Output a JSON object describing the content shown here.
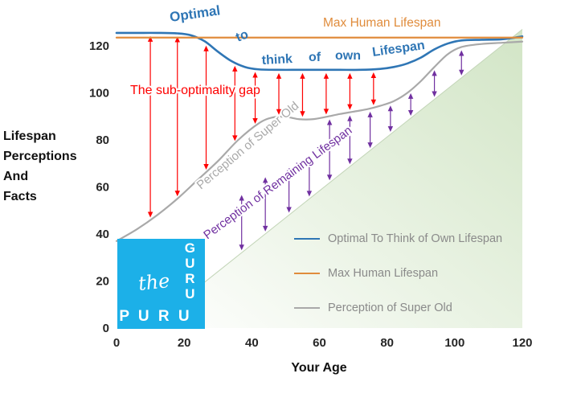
{
  "colors": {
    "blue": "#2f76b5",
    "orange": "#e08c3c",
    "gray": "#a9a9a9",
    "red": "#fe0000",
    "purple": "#7030a0",
    "green_area": "#d2e5c6",
    "logo_cyan": "#1cb0e8",
    "legend_text": "#8a8a8a",
    "axis_text": "#262626"
  },
  "axis": {
    "x_title": "Your Age",
    "y_title_lines": [
      "Lifespan",
      "Perceptions",
      "And",
      "Facts"
    ]
  },
  "annotations": {
    "optimal_words": [
      "Optimal",
      "to",
      "think",
      "of",
      "own",
      "Lifespan"
    ],
    "max_label": "Max Human Lifespan",
    "gap_label": "The sub-optimality gap",
    "super_old_label": "Perception of Super Old",
    "remaining_label": "Perception of Remaining Lifespan"
  },
  "legend": {
    "items": [
      {
        "label": "Optimal To Think of Own Lifespan",
        "color_key": "blue"
      },
      {
        "label": "Max Human Lifespan",
        "color_key": "orange"
      },
      {
        "label": "Perception of Super Old",
        "color_key": "gray"
      }
    ]
  },
  "logo": {
    "side_letters": [
      "G",
      "U",
      "R",
      "U"
    ],
    "script_word": "the",
    "bottom_word": "P U R U"
  },
  "chart_data": {
    "type": "line",
    "title": "",
    "xlabel": "Your Age",
    "ylabel": "Lifespan Perceptions And Facts",
    "xlim": [
      0,
      120
    ],
    "ylim": [
      0,
      130
    ],
    "x_ticks": [
      0,
      20,
      40,
      60,
      80,
      100,
      120
    ],
    "y_ticks": [
      0,
      20,
      40,
      60,
      80,
      100,
      120
    ],
    "grid": false,
    "legend_position": "inside-bottom-right",
    "series": [
      {
        "name": "Optimal To Think of Own Lifespan",
        "color_key": "blue",
        "x": [
          0,
          6,
          12,
          18,
          22,
          26,
          30,
          34,
          38,
          42,
          48,
          54,
          60,
          66,
          72,
          78,
          82,
          86,
          90,
          94,
          98,
          102,
          108,
          114,
          120
        ],
        "y": [
          125.5,
          125.5,
          125.5,
          125.3,
          124.5,
          122,
          117.5,
          113.5,
          111,
          110,
          109.8,
          109.8,
          109.8,
          109.8,
          109.8,
          110.2,
          111,
          112.5,
          115,
          118.5,
          121,
          122.3,
          122.6,
          122.8,
          124
        ]
      },
      {
        "name": "Max Human Lifespan",
        "color_key": "orange",
        "x": [
          0,
          120
        ],
        "y": [
          123.5,
          123.5
        ]
      },
      {
        "name": "Perception of Super Old",
        "color_key": "gray",
        "x": [
          0,
          6,
          12,
          18,
          24,
          30,
          36,
          42,
          46,
          50,
          54,
          58,
          62,
          66,
          70,
          74,
          78,
          82,
          86,
          90,
          94,
          98,
          102,
          108,
          114,
          120
        ],
        "y": [
          37,
          42,
          48,
          55,
          63,
          71,
          80,
          87,
          89.5,
          89.8,
          88.8,
          88.8,
          89.8,
          91,
          92,
          93,
          94.5,
          96.5,
          100,
          105,
          111,
          116.5,
          119.5,
          120.8,
          121.3,
          121.8
        ]
      }
    ],
    "age_diagonal": {
      "x": [
        9,
        120
      ],
      "y": [
        0,
        127
      ]
    },
    "green_region_points": [
      [
        9,
        0
      ],
      [
        120,
        127
      ],
      [
        120,
        0
      ]
    ],
    "red_arrows": {
      "between": [
        "Perception of Super Old",
        "Optimal To Think of Own Lifespan"
      ],
      "ages": [
        10,
        18,
        26.5,
        35,
        41,
        48,
        55,
        62,
        69,
        76
      ]
    },
    "purple_arrows": {
      "between": [
        "age diagonal",
        "Perception of Super Old"
      ],
      "ages": [
        37,
        44,
        51,
        57,
        63,
        69,
        75,
        81,
        87,
        94,
        102
      ]
    }
  }
}
